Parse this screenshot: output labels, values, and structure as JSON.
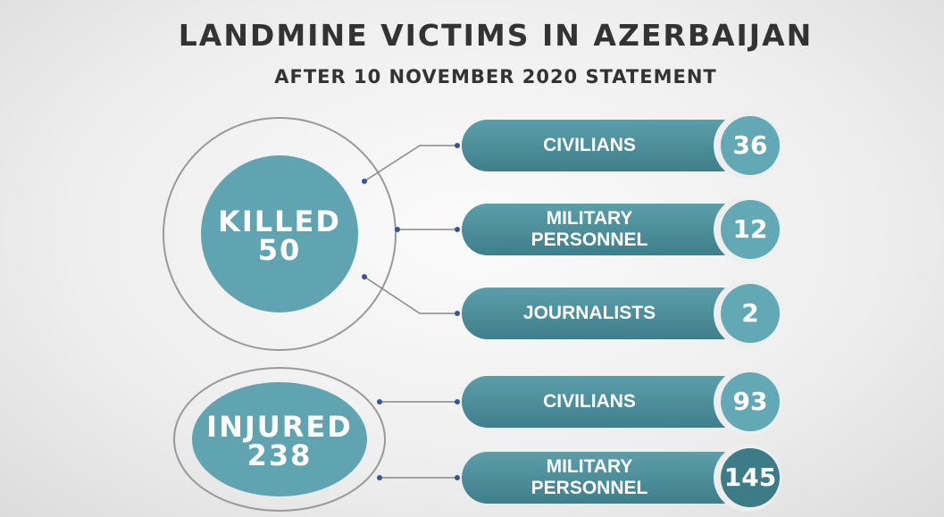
{
  "title": "LANDMINE VICTIMS IN AZERBAIJAN",
  "subtitle": "AFTER 10 NOVEMBER 2020 STATEMENT",
  "groups": [
    {
      "label": "KILLED",
      "total": 50,
      "items": [
        {
          "label": "CIVILIANS",
          "value": 36
        },
        {
          "label": "MILITARY PERSONNEL",
          "value": 12
        },
        {
          "label": "JOURNALISTS",
          "value": 2
        }
      ]
    },
    {
      "label": "INJURED",
      "total": 238,
      "items": [
        {
          "label": "CIVILIANS",
          "value": 93
        },
        {
          "label": "MILITARY PERSONNEL",
          "value": 145
        }
      ]
    }
  ]
}
